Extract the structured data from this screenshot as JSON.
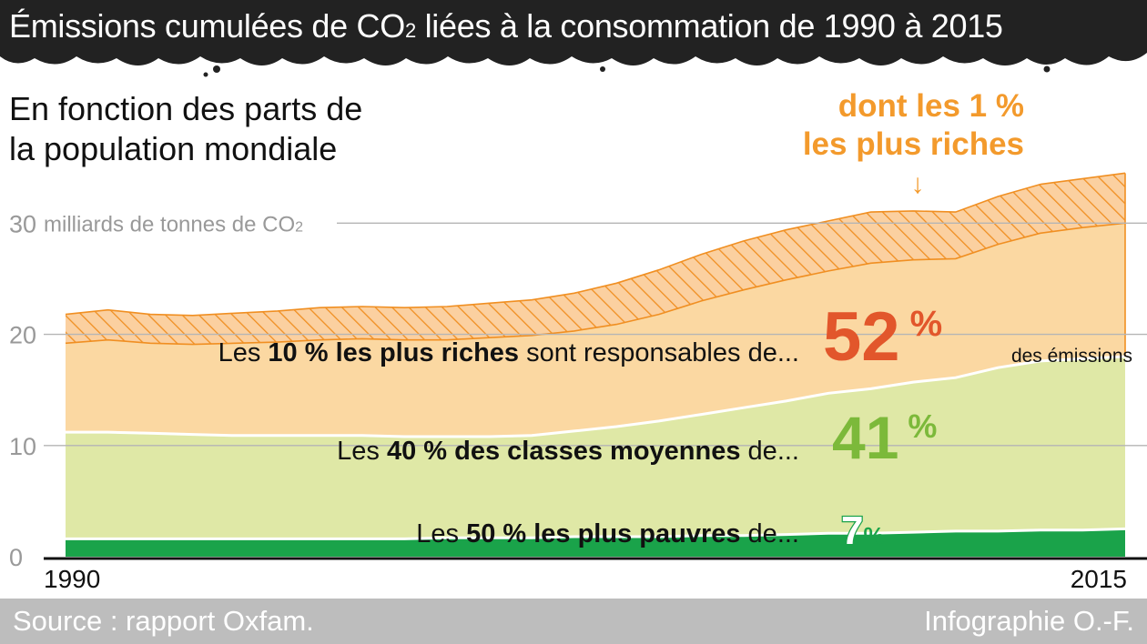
{
  "header": {
    "title_before": "Émissions cumulées de CO",
    "title_sub": "2",
    "title_after": " liées à la consommation de 1990 à 2015"
  },
  "subtitle": {
    "line1": "En fonction des parts de",
    "line2": "la population mondiale"
  },
  "chart_data": {
    "type": "area",
    "stacked": true,
    "x": [
      1990,
      1991,
      1992,
      1993,
      1994,
      1995,
      1996,
      1997,
      1998,
      1999,
      2000,
      2001,
      2002,
      2003,
      2004,
      2005,
      2006,
      2007,
      2008,
      2009,
      2010,
      2011,
      2012,
      2013,
      2014,
      2015
    ],
    "xtick_labels": [
      "1990",
      "2015"
    ],
    "ylim": [
      0,
      36
    ],
    "yticks": [
      0,
      10,
      20,
      30
    ],
    "ytick_labels": [
      "0",
      "10",
      "20",
      "30"
    ],
    "y_unit_label": "milliards de tonnes de CO",
    "y_unit_sub": "2",
    "grid": "horizontal",
    "series": [
      {
        "name": "Les 50 % les plus pauvres",
        "color": "#1aa34a",
        "values": [
          1.6,
          1.6,
          1.6,
          1.6,
          1.6,
          1.6,
          1.6,
          1.6,
          1.6,
          1.7,
          1.7,
          1.7,
          1.8,
          1.8,
          1.8,
          1.9,
          1.9,
          2.0,
          2.1,
          2.1,
          2.2,
          2.3,
          2.3,
          2.4,
          2.4,
          2.5
        ]
      },
      {
        "name": "Les 40 % des classes moyennes",
        "color": "#dfe8a6",
        "values": [
          9.6,
          9.6,
          9.5,
          9.4,
          9.3,
          9.3,
          9.3,
          9.3,
          9.2,
          9.1,
          9.1,
          9.2,
          9.5,
          9.9,
          10.4,
          10.9,
          11.5,
          12.0,
          12.6,
          13.0,
          13.5,
          13.8,
          14.7,
          15.2,
          15.4,
          15.5
        ]
      },
      {
        "name": "Les 10 % les plus riches (hors 1 %)",
        "color": "#fbd8a2",
        "values": [
          8.0,
          8.3,
          8.1,
          8.1,
          8.3,
          8.4,
          8.6,
          8.7,
          8.7,
          8.7,
          8.9,
          9.0,
          9.0,
          9.2,
          9.6,
          10.2,
          10.6,
          10.9,
          11.0,
          11.3,
          11.0,
          10.7,
          11.1,
          11.5,
          11.8,
          12.0
        ]
      },
      {
        "name": "dont les 1 % les plus riches",
        "color": "#f39a2c",
        "hatched": true,
        "values": [
          2.6,
          2.7,
          2.6,
          2.6,
          2.7,
          2.8,
          2.9,
          2.9,
          2.9,
          3.0,
          3.1,
          3.2,
          3.4,
          3.7,
          4.0,
          4.2,
          4.4,
          4.5,
          4.5,
          4.6,
          4.4,
          4.2,
          4.3,
          4.4,
          4.4,
          4.5
        ]
      }
    ],
    "annotations": {
      "top1": {
        "line1": "dont les 1 %",
        "line2": "les plus riches",
        "arrow": "↓"
      },
      "rich": {
        "pre": "Les ",
        "bold": "10 % les plus riches",
        "post": " sont responsables de...",
        "value": "52",
        "unit": "%",
        "suffix": "des émissions",
        "color": "#e2562b"
      },
      "middle": {
        "pre": "Les ",
        "bold": "40 % des classes moyennes",
        "post": " de...",
        "value": "41",
        "unit": "%",
        "color": "#7cb93a"
      },
      "poor": {
        "pre": "Les ",
        "bold": "50 % les plus pauvres",
        "post": " de...",
        "value": "7",
        "unit": "%",
        "color": "#1aa34a"
      }
    }
  },
  "footer": {
    "source": "Source : rapport Oxfam.",
    "credit": "Infographie O.-F."
  }
}
